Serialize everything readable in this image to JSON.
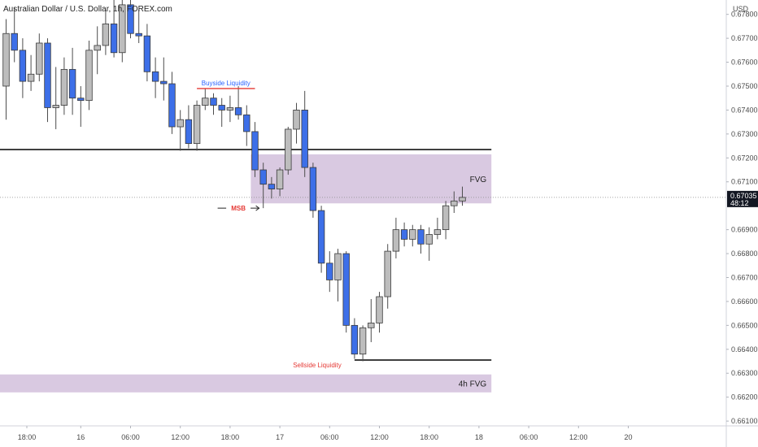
{
  "chart_data": {
    "type": "candlestick",
    "title": "Australian Dollar / U.S. Dollar, 1h, FOREX.com",
    "currency": "USD",
    "price_axis": {
      "ticks": [
        0.678,
        0.677,
        0.676,
        0.675,
        0.674,
        0.673,
        0.672,
        0.671,
        0.669,
        0.668,
        0.667,
        0.666,
        0.665,
        0.664,
        0.663,
        0.662,
        0.661
      ],
      "tick_labels": [
        "0.67800",
        "0.67700",
        "0.67600",
        "0.67500",
        "0.67400",
        "0.67300",
        "0.67200",
        "0.67100",
        "0.66900",
        "0.66800",
        "0.66700",
        "0.66600",
        "0.66500",
        "0.66400",
        "0.66300",
        "0.66200",
        "0.66100"
      ],
      "range": [
        0.6608,
        0.6786
      ]
    },
    "time_axis": {
      "labels": [
        "18:00",
        "16",
        "06:00",
        "12:00",
        "18:00",
        "17",
        "06:00",
        "12:00",
        "18:00",
        "18",
        "06:00",
        "12:00",
        "20"
      ],
      "label_bars": [
        2.5,
        9,
        15,
        21,
        27,
        33,
        39,
        45,
        51,
        57,
        63,
        69,
        75
      ]
    },
    "current_price": {
      "value": 0.67035,
      "label": "0.67035",
      "countdown": "48:12"
    },
    "candles": [
      {
        "o": 0.675,
        "h": 0.6778,
        "l": 0.6736,
        "c": 0.6772
      },
      {
        "o": 0.6772,
        "h": 0.6783,
        "l": 0.676,
        "c": 0.6765
      },
      {
        "o": 0.6765,
        "h": 0.677,
        "l": 0.6745,
        "c": 0.6752
      },
      {
        "o": 0.6752,
        "h": 0.6763,
        "l": 0.6748,
        "c": 0.6755
      },
      {
        "o": 0.6755,
        "h": 0.6772,
        "l": 0.6752,
        "c": 0.6768
      },
      {
        "o": 0.6768,
        "h": 0.677,
        "l": 0.6735,
        "c": 0.6741
      },
      {
        "o": 0.6741,
        "h": 0.6758,
        "l": 0.6732,
        "c": 0.6742
      },
      {
        "o": 0.6742,
        "h": 0.6762,
        "l": 0.6738,
        "c": 0.6757
      },
      {
        "o": 0.6757,
        "h": 0.6766,
        "l": 0.6738,
        "c": 0.6745
      },
      {
        "o": 0.6745,
        "h": 0.675,
        "l": 0.6733,
        "c": 0.6744
      },
      {
        "o": 0.6744,
        "h": 0.6769,
        "l": 0.674,
        "c": 0.6765
      },
      {
        "o": 0.6765,
        "h": 0.6775,
        "l": 0.6755,
        "c": 0.6767
      },
      {
        "o": 0.6767,
        "h": 0.6782,
        "l": 0.6763,
        "c": 0.6776
      },
      {
        "o": 0.6776,
        "h": 0.6786,
        "l": 0.6762,
        "c": 0.6764
      },
      {
        "o": 0.6764,
        "h": 0.6787,
        "l": 0.676,
        "c": 0.6784
      },
      {
        "o": 0.6784,
        "h": 0.679,
        "l": 0.677,
        "c": 0.6772
      },
      {
        "o": 0.6772,
        "h": 0.6782,
        "l": 0.6768,
        "c": 0.6771
      },
      {
        "o": 0.6771,
        "h": 0.6776,
        "l": 0.6752,
        "c": 0.6756
      },
      {
        "o": 0.6756,
        "h": 0.6762,
        "l": 0.6745,
        "c": 0.6752
      },
      {
        "o": 0.6752,
        "h": 0.6762,
        "l": 0.6744,
        "c": 0.6751
      },
      {
        "o": 0.6751,
        "h": 0.6756,
        "l": 0.673,
        "c": 0.6733
      },
      {
        "o": 0.6733,
        "h": 0.674,
        "l": 0.6723,
        "c": 0.6736
      },
      {
        "o": 0.6736,
        "h": 0.6742,
        "l": 0.6724,
        "c": 0.6726
      },
      {
        "o": 0.6726,
        "h": 0.6744,
        "l": 0.6723,
        "c": 0.6742
      },
      {
        "o": 0.6742,
        "h": 0.6749,
        "l": 0.674,
        "c": 0.6745
      },
      {
        "o": 0.6745,
        "h": 0.6747,
        "l": 0.6738,
        "c": 0.6742
      },
      {
        "o": 0.6742,
        "h": 0.6745,
        "l": 0.6733,
        "c": 0.674
      },
      {
        "o": 0.674,
        "h": 0.6746,
        "l": 0.6735,
        "c": 0.6741
      },
      {
        "o": 0.6741,
        "h": 0.675,
        "l": 0.6736,
        "c": 0.6738
      },
      {
        "o": 0.6738,
        "h": 0.6742,
        "l": 0.6725,
        "c": 0.6731
      },
      {
        "o": 0.6731,
        "h": 0.6735,
        "l": 0.6712,
        "c": 0.6715
      },
      {
        "o": 0.6715,
        "h": 0.6718,
        "l": 0.6699,
        "c": 0.6709
      },
      {
        "o": 0.6709,
        "h": 0.6712,
        "l": 0.6703,
        "c": 0.6707
      },
      {
        "o": 0.6707,
        "h": 0.6716,
        "l": 0.6704,
        "c": 0.6715
      },
      {
        "o": 0.6715,
        "h": 0.6733,
        "l": 0.6713,
        "c": 0.6732
      },
      {
        "o": 0.6732,
        "h": 0.6743,
        "l": 0.6726,
        "c": 0.674
      },
      {
        "o": 0.674,
        "h": 0.6748,
        "l": 0.6712,
        "c": 0.6716
      },
      {
        "o": 0.6716,
        "h": 0.6718,
        "l": 0.6695,
        "c": 0.6698
      },
      {
        "o": 0.6698,
        "h": 0.67,
        "l": 0.6672,
        "c": 0.6676
      },
      {
        "o": 0.6676,
        "h": 0.6681,
        "l": 0.6664,
        "c": 0.6669
      },
      {
        "o": 0.6669,
        "h": 0.6682,
        "l": 0.666,
        "c": 0.668
      },
      {
        "o": 0.668,
        "h": 0.6681,
        "l": 0.6647,
        "c": 0.665
      },
      {
        "o": 0.665,
        "h": 0.6653,
        "l": 0.6636,
        "c": 0.6638
      },
      {
        "o": 0.6638,
        "h": 0.665,
        "l": 0.6635,
        "c": 0.6649
      },
      {
        "o": 0.6649,
        "h": 0.6661,
        "l": 0.6643,
        "c": 0.6651
      },
      {
        "o": 0.6651,
        "h": 0.6664,
        "l": 0.6647,
        "c": 0.6662
      },
      {
        "o": 0.6662,
        "h": 0.6684,
        "l": 0.6657,
        "c": 0.6681
      },
      {
        "o": 0.6681,
        "h": 0.6695,
        "l": 0.6678,
        "c": 0.669
      },
      {
        "o": 0.669,
        "h": 0.6693,
        "l": 0.6683,
        "c": 0.6686
      },
      {
        "o": 0.6686,
        "h": 0.6692,
        "l": 0.6683,
        "c": 0.669
      },
      {
        "o": 0.669,
        "h": 0.6692,
        "l": 0.668,
        "c": 0.6684
      },
      {
        "o": 0.6684,
        "h": 0.6691,
        "l": 0.6677,
        "c": 0.6688
      },
      {
        "o": 0.6688,
        "h": 0.6695,
        "l": 0.6686,
        "c": 0.669
      },
      {
        "o": 0.669,
        "h": 0.6702,
        "l": 0.6686,
        "c": 0.67
      },
      {
        "o": 0.67,
        "h": 0.6706,
        "l": 0.6697,
        "c": 0.6702
      },
      {
        "o": 0.6702,
        "h": 0.6708,
        "l": 0.67,
        "c": 0.67035
      }
    ],
    "colors": {
      "up": "#bdbdbd",
      "down": "#3d6fe8",
      "wick": "#4d4d4d",
      "zone": "#d5c3de",
      "price_tag": "#131722",
      "annotation_blue": "#2962ff",
      "annotation_red": "#e53935"
    },
    "levels": [
      {
        "price": 0.67235,
        "from_bar": -1,
        "to_bar": 58.5
      },
      {
        "price": 0.66355,
        "from_bar": 42,
        "to_bar": 58.5
      }
    ],
    "zones": [
      {
        "label": "FVG",
        "top": 0.67215,
        "bottom": 0.6701,
        "from_bar": 29.5,
        "to_bar": 58.5
      },
      {
        "label": "4h FVG",
        "top": 0.66295,
        "bottom": 0.6622,
        "from_bar": -1,
        "to_bar": 58.5
      }
    ],
    "annotations": [
      {
        "text": "Buyside Liquidity",
        "price": 0.6749,
        "from_bar": 23,
        "to_bar": 30,
        "color_key": "annotation_blue",
        "line_color_key": "annotation_red"
      },
      {
        "text": "MSB",
        "price": 0.6699,
        "from_bar": 25.5,
        "to_bar": 30.5,
        "color_key": "annotation_red"
      },
      {
        "text": "Sellside Liquidity",
        "price": 0.66355,
        "from_bar": 35,
        "to_bar": 40,
        "color_key": "annotation_red"
      }
    ]
  }
}
